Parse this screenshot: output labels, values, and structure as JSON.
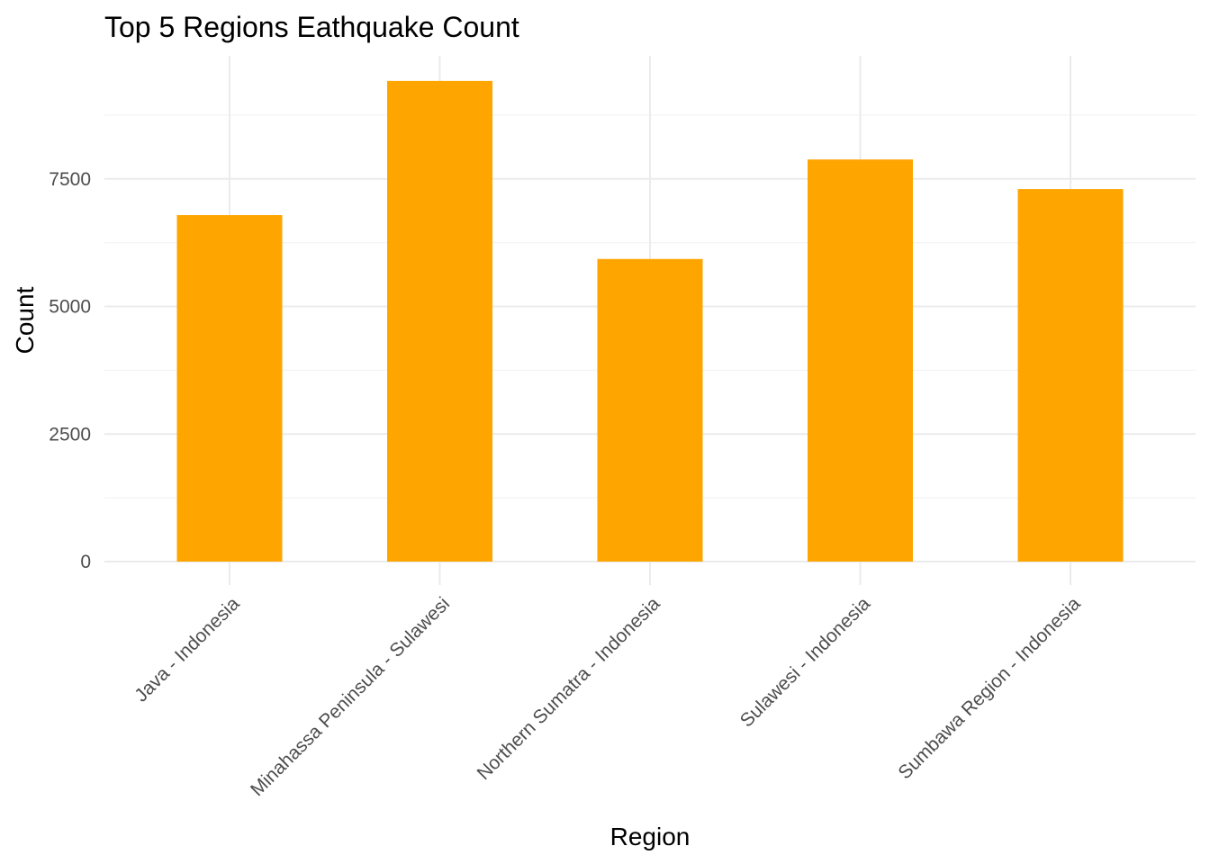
{
  "chart_data": {
    "type": "bar",
    "title": "Top 5 Regions Eathquake Count",
    "xlabel": "Region",
    "ylabel": "Count",
    "categories": [
      "Java - Indonesia",
      "Minahassa Peninsula - Sulawesi",
      "Northern Sumatra - Indonesia",
      "Sulawesi - Indonesia",
      "Sumbawa Region - Indonesia"
    ],
    "values": [
      6790,
      9420,
      5930,
      7880,
      7300
    ],
    "yticks": [
      0,
      2500,
      5000,
      7500
    ],
    "ylim": [
      0,
      10000
    ],
    "grid": true,
    "legend": "none",
    "bar_color": "#FFA500"
  }
}
